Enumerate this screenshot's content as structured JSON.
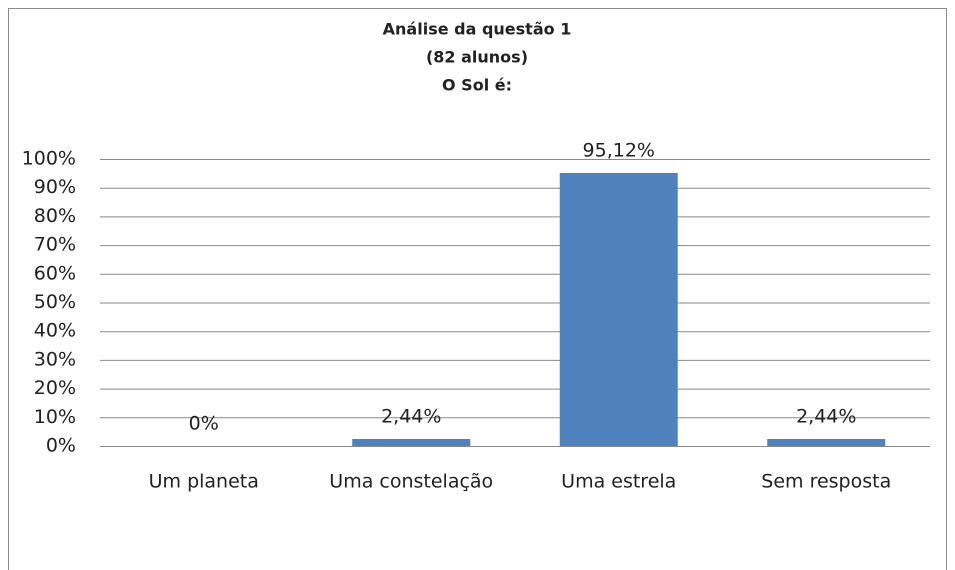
{
  "chart_data": {
    "type": "bar",
    "title": [
      "Análise da questão 1",
      "(82 alunos)",
      "O Sol  é:"
    ],
    "categories": [
      "Um planeta",
      "Uma constelação",
      "Uma estrela",
      "Sem resposta"
    ],
    "values": [
      0,
      2.44,
      95.12,
      2.44
    ],
    "value_labels": [
      "0%",
      "2,44%",
      "95,12%",
      "2,44%"
    ],
    "color": "#4f81bd",
    "ylim": [
      0,
      100
    ],
    "yticks": [
      {
        "value": 0,
        "label": "0%"
      },
      {
        "value": 10,
        "label": "10%"
      },
      {
        "value": 20,
        "label": "20%"
      },
      {
        "value": 30,
        "label": "30%"
      },
      {
        "value": 40,
        "label": "40%"
      },
      {
        "value": 50,
        "label": "50%"
      },
      {
        "value": 60,
        "label": "60%"
      },
      {
        "value": 70,
        "label": "70%"
      },
      {
        "value": 80,
        "label": "80%"
      },
      {
        "value": 90,
        "label": "90%"
      },
      {
        "value": 100,
        "label": "100%"
      }
    ],
    "grid": true
  }
}
